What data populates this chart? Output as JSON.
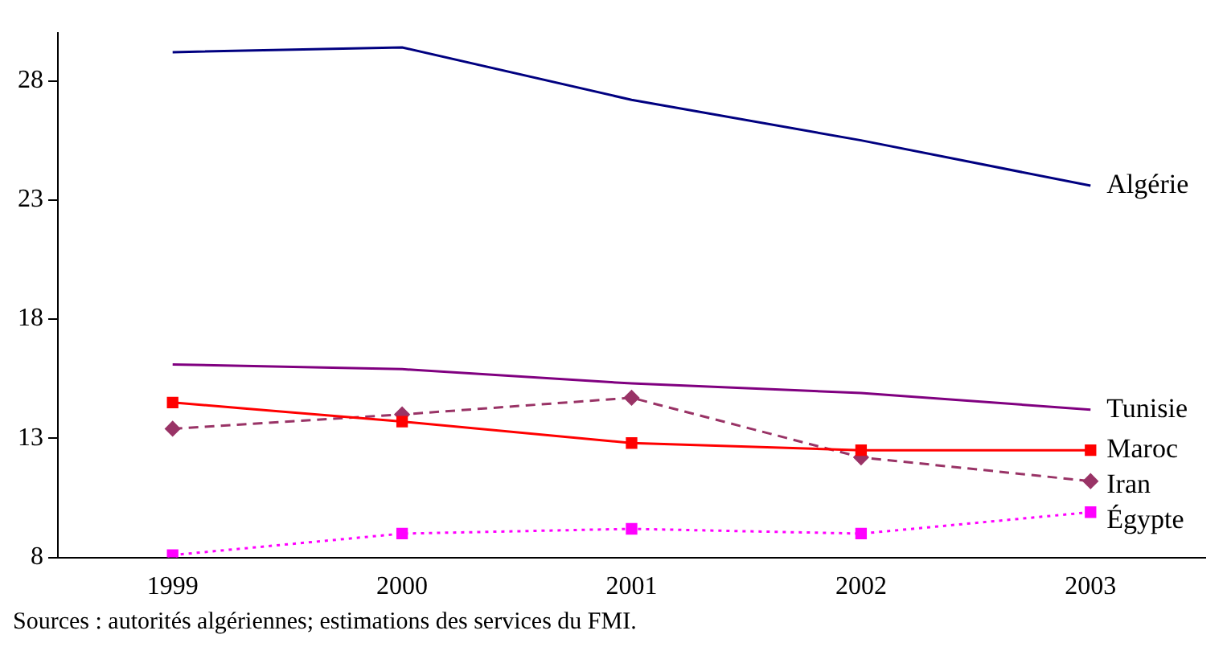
{
  "chart_data": {
    "type": "line",
    "categories": [
      "1999",
      "2000",
      "2001",
      "2002",
      "2003"
    ],
    "series": [
      {
        "name": "Algérie",
        "color": "#000080",
        "values": [
          29.2,
          29.4,
          27.2,
          25.5,
          23.6
        ],
        "marker": "none",
        "line_style": "solid"
      },
      {
        "name": "Tunisie",
        "color": "#800080",
        "values": [
          16.1,
          15.9,
          15.3,
          14.9,
          14.2
        ],
        "marker": "none",
        "line_style": "solid"
      },
      {
        "name": "Maroc",
        "color": "#ff0000",
        "values": [
          14.5,
          13.7,
          12.8,
          12.5,
          12.5
        ],
        "marker": "square",
        "line_style": "solid"
      },
      {
        "name": "Iran",
        "color": "#993366",
        "values": [
          13.4,
          14.0,
          14.7,
          12.2,
          11.2
        ],
        "marker": "diamond",
        "line_style": "dashed"
      },
      {
        "name": "Égypte",
        "color": "#ff00ff",
        "values": [
          8.1,
          9.0,
          9.2,
          9.0,
          9.9
        ],
        "marker": "square",
        "line_style": "dotted"
      }
    ],
    "ylim": [
      8,
      30
    ],
    "yticks": [
      8,
      13,
      18,
      23,
      28
    ],
    "grid": false,
    "legend": false,
    "annotations": [
      "Sources : autorités algériennes; estimations des services du FMI."
    ]
  }
}
